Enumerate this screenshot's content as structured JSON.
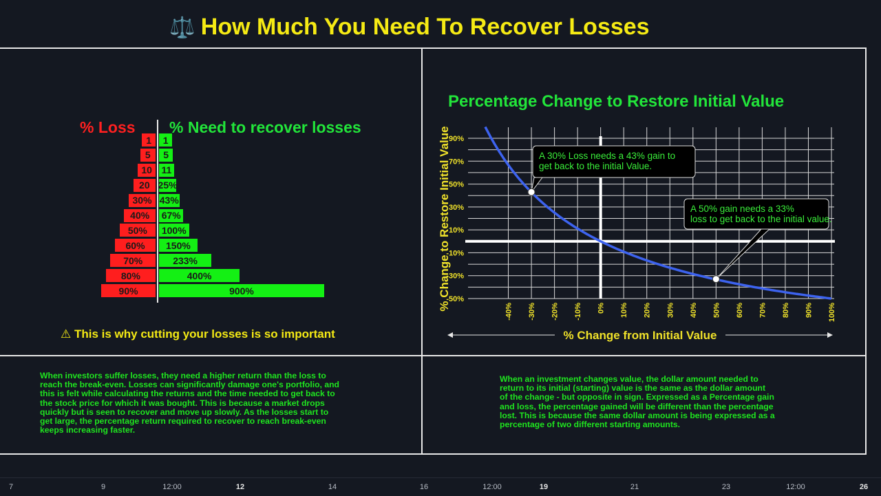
{
  "page": {
    "title": "How Much You Need To Recover Losses",
    "title_icon": "scale-icon",
    "warning_icon": "warning-icon",
    "warning_text": "This is why cutting your losses is so important",
    "left_paragraph": "When investors suffer losses, they need a higher return than the loss to reach the break-even. Losses can significantly damage one's portfolio, and this is felt while calculating the returns and the time needed to get back to the stock price for which it was bought. This is because a market drops quickly but is seen to recover and move up slowly. As the losses start to get large, the percentage return required to recover to  reach break-even keeps increasing faster.",
    "right_paragraph": "When an investment changes value, the dollar amount needed to return to its initial (starting) value is the same as the dollar amount of the change - but opposite in sign. Expressed as a Percentage gain and loss, the percentage gained will be different than the percentage lost. This is because the same dollar amount is being expressed as a percentage of two different starting amounts."
  },
  "chart_data": [
    {
      "type": "bar",
      "orientation": "horizontal-butterfly",
      "left_heading": "% Loss",
      "right_heading": "% Need to recover losses",
      "loss_labels": [
        "1",
        "5",
        "10",
        "20",
        "30%",
        "40%",
        "50%",
        "60%",
        "70%",
        "80%",
        "90%"
      ],
      "gain_labels": [
        "1",
        "5",
        "11",
        "25%",
        "43%",
        "67%",
        "100%",
        "150%",
        "233%",
        "400%",
        "900%"
      ],
      "loss_values": [
        1,
        5,
        10,
        20,
        30,
        40,
        50,
        60,
        70,
        80,
        90
      ],
      "gain_values": [
        1,
        5,
        11,
        25,
        43,
        67,
        100,
        150,
        233,
        400,
        900
      ],
      "colors": {
        "loss": "#ff1e1e",
        "gain": "#14f014"
      }
    },
    {
      "type": "line",
      "title": "Percentage Change to Restore Initial Value",
      "xlabel": "% Change from Initial Value",
      "ylabel": "% Change to Restore Initial Value",
      "xlim": [
        -50,
        100
      ],
      "ylim": [
        -50,
        100
      ],
      "x_ticks": [
        "-40%",
        "-30%",
        "-20%",
        "-10%",
        "0%",
        "10%",
        "20%",
        "30%",
        "40%",
        "50%",
        "60%",
        "70%",
        "80%",
        "90%",
        "100%"
      ],
      "x_tick_values": [
        -40,
        -30,
        -20,
        -10,
        0,
        10,
        20,
        30,
        40,
        50,
        60,
        70,
        80,
        90,
        100
      ],
      "y_ticks": [
        "90%",
        "70%",
        "50%",
        "30%",
        "10%",
        "-10%",
        "-30%",
        "-50%"
      ],
      "y_tick_values": [
        90,
        70,
        50,
        30,
        10,
        -10,
        -30,
        -50
      ],
      "grid": true,
      "series": [
        {
          "x": [
            -50,
            -45,
            -40,
            -35,
            -30,
            -25,
            -20,
            -15,
            -10,
            -5,
            0,
            10,
            20,
            30,
            40,
            50,
            60,
            70,
            80,
            90,
            100
          ],
          "y": [
            100,
            81.8,
            66.7,
            53.8,
            42.9,
            33.3,
            25,
            17.6,
            11.1,
            5.3,
            0,
            -9.1,
            -16.7,
            -23.1,
            -28.6,
            -33.3,
            -37.5,
            -41.2,
            -44.4,
            -47.4,
            -50
          ],
          "color": "#3d63ef"
        }
      ],
      "annotations": [
        {
          "x": -30,
          "y": 43,
          "text": "A 30% Loss needs a 43% gain to get back to the initial Value."
        },
        {
          "x": 50,
          "y": -33,
          "text": "A 50% gain needs a 33% loss to get back to the initial value."
        }
      ]
    }
  ],
  "time_axis": {
    "labels": [
      {
        "text": "7",
        "bold": false
      },
      {
        "text": "9",
        "bold": false
      },
      {
        "text": "12:00",
        "bold": false
      },
      {
        "text": "12",
        "bold": true
      },
      {
        "text": "14",
        "bold": false
      },
      {
        "text": "16",
        "bold": false
      },
      {
        "text": "12:00",
        "bold": false
      },
      {
        "text": "19",
        "bold": true
      },
      {
        "text": "21",
        "bold": false
      },
      {
        "text": "23",
        "bold": false
      },
      {
        "text": "12:00",
        "bold": false
      },
      {
        "text": "26",
        "bold": true
      }
    ]
  }
}
